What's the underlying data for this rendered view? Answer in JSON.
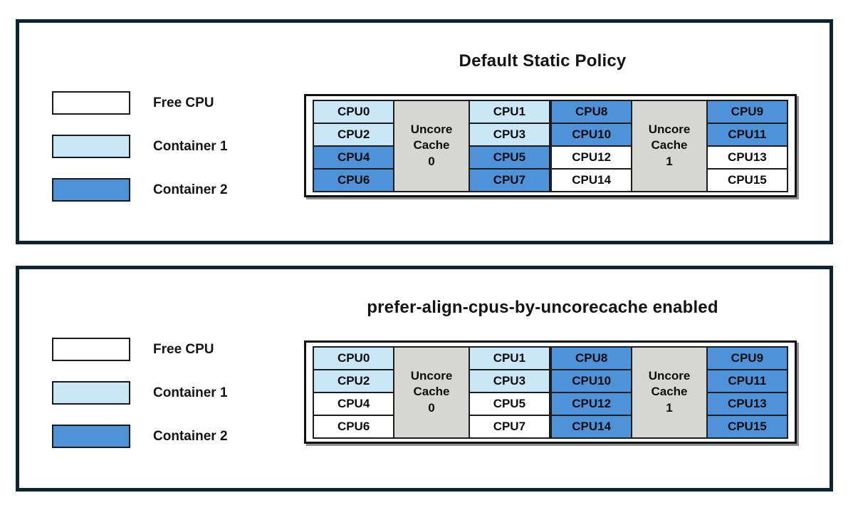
{
  "colors": {
    "free": "#ffffff",
    "container1": "#c9e7f7",
    "container2": "#4e92d9",
    "uncore_cache_fill": "#d6d6d3",
    "panel_border": "#0a2433",
    "cell_border": "#1c1c1c"
  },
  "legend": {
    "items": [
      {
        "label": "Free CPU",
        "assign": "free"
      },
      {
        "label": "Container 1",
        "assign": "container1"
      },
      {
        "label": "Container 2",
        "assign": "container2"
      }
    ]
  },
  "panels": [
    {
      "title": "Default Static Policy",
      "diagram": {
        "groups": [
          {
            "cache_name": "Uncore Cache",
            "cache_num": "0",
            "left": [
              {
                "label": "CPU0",
                "assign": "container1"
              },
              {
                "label": "CPU2",
                "assign": "container1"
              },
              {
                "label": "CPU4",
                "assign": "container2"
              },
              {
                "label": "CPU6",
                "assign": "container2"
              }
            ],
            "right": [
              {
                "label": "CPU1",
                "assign": "container1"
              },
              {
                "label": "CPU3",
                "assign": "container1"
              },
              {
                "label": "CPU5",
                "assign": "container2"
              },
              {
                "label": "CPU7",
                "assign": "container2"
              }
            ]
          },
          {
            "cache_name": "Uncore Cache",
            "cache_num": "1",
            "left": [
              {
                "label": "CPU8",
                "assign": "container2"
              },
              {
                "label": "CPU10",
                "assign": "container2"
              },
              {
                "label": "CPU12",
                "assign": "free"
              },
              {
                "label": "CPU14",
                "assign": "free"
              }
            ],
            "right": [
              {
                "label": "CPU9",
                "assign": "container2"
              },
              {
                "label": "CPU11",
                "assign": "container2"
              },
              {
                "label": "CPU13",
                "assign": "free"
              },
              {
                "label": "CPU15",
                "assign": "free"
              }
            ]
          }
        ]
      }
    },
    {
      "title": "prefer-align-cpus-by-uncorecache enabled",
      "diagram": {
        "groups": [
          {
            "cache_name": "Uncore Cache",
            "cache_num": "0",
            "left": [
              {
                "label": "CPU0",
                "assign": "container1"
              },
              {
                "label": "CPU2",
                "assign": "container1"
              },
              {
                "label": "CPU4",
                "assign": "free"
              },
              {
                "label": "CPU6",
                "assign": "free"
              }
            ],
            "right": [
              {
                "label": "CPU1",
                "assign": "container1"
              },
              {
                "label": "CPU3",
                "assign": "container1"
              },
              {
                "label": "CPU5",
                "assign": "free"
              },
              {
                "label": "CPU7",
                "assign": "free"
              }
            ]
          },
          {
            "cache_name": "Uncore Cache",
            "cache_num": "1",
            "left": [
              {
                "label": "CPU8",
                "assign": "container2"
              },
              {
                "label": "CPU10",
                "assign": "container2"
              },
              {
                "label": "CPU12",
                "assign": "container2"
              },
              {
                "label": "CPU14",
                "assign": "container2"
              }
            ],
            "right": [
              {
                "label": "CPU9",
                "assign": "container2"
              },
              {
                "label": "CPU11",
                "assign": "container2"
              },
              {
                "label": "CPU13",
                "assign": "container2"
              },
              {
                "label": "CPU15",
                "assign": "container2"
              }
            ]
          }
        ]
      }
    }
  ]
}
